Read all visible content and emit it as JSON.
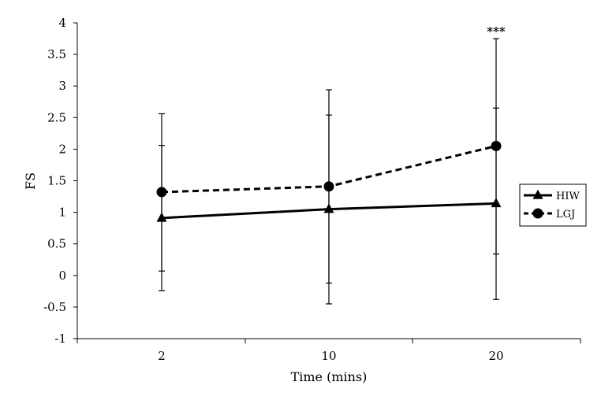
{
  "chart_data": {
    "type": "line",
    "title": "",
    "xlabel": "Time (mins)",
    "ylabel": "FS",
    "categories": [
      "2",
      "10",
      "20"
    ],
    "ylim": [
      -1,
      4
    ],
    "yticks": [
      "4",
      "3.5",
      "3",
      "2.5",
      "2",
      "1.5",
      "1",
      "0.5",
      "0",
      "-0.5",
      "-1"
    ],
    "ytick_values": [
      4,
      3.5,
      3,
      2.5,
      2,
      1.5,
      1,
      0.5,
      0,
      -0.5,
      -1
    ],
    "grid": false,
    "legend_position": "right",
    "series": [
      {
        "name": "HIW",
        "marker": "triangle",
        "line_style": "solid",
        "values": [
          0.91,
          1.05,
          1.14
        ],
        "error_low": [
          -0.24,
          -0.45,
          -0.38
        ],
        "error_high": [
          2.06,
          2.54,
          2.65
        ]
      },
      {
        "name": "LGJ",
        "marker": "circle",
        "line_style": "dashed",
        "values": [
          1.32,
          1.41,
          2.05
        ],
        "error_low": [
          0.07,
          -0.12,
          0.34
        ],
        "error_high": [
          2.56,
          2.94,
          3.75
        ]
      }
    ],
    "annotations": [
      {
        "text": "***",
        "category": "20",
        "value": 3.75
      }
    ]
  }
}
